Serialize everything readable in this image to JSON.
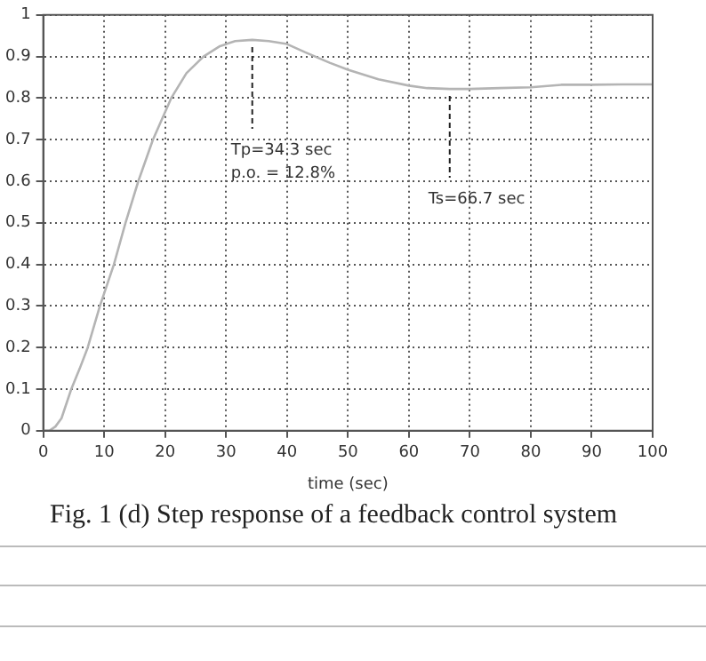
{
  "chart_data": {
    "type": "line",
    "xlabel": "time (sec)",
    "title": "Fig. 1 (d) Step response of a feedback control system",
    "series": [
      {
        "color": "#b4b4b4",
        "x": [
          0,
          1,
          2,
          3,
          4.6,
          6,
          7.3,
          9.3,
          11.6,
          13.5,
          15.6,
          18,
          21,
          23.5,
          26.3,
          29,
          31.5,
          34.3,
          37,
          40,
          43,
          47,
          50,
          55,
          60,
          63,
          66.7,
          70,
          75,
          80,
          85,
          90,
          95,
          100
        ],
        "values": [
          0,
          0,
          0.01,
          0.03,
          0.1,
          0.15,
          0.2,
          0.3,
          0.4,
          0.5,
          0.6,
          0.7,
          0.8,
          0.86,
          0.9,
          0.925,
          0.937,
          0.94,
          0.937,
          0.93,
          0.91,
          0.885,
          0.868,
          0.845,
          0.83,
          0.824,
          0.822,
          0.822,
          0.824,
          0.826,
          0.832,
          0.832,
          0.833,
          0.833
        ]
      }
    ],
    "annotations": [
      {
        "text": "Tp=34.3 sec",
        "x": 34.3,
        "y": 0.94
      },
      "p.o. = 12.8%",
      {
        "text": "Ts=66.7 sec",
        "x": 66.7,
        "y": 0.822
      }
    ],
    "xlim": [
      0,
      100
    ],
    "xticks": [
      0,
      10,
      20,
      30,
      40,
      50,
      60,
      70,
      80,
      90,
      100
    ],
    "ylim": [
      0,
      1
    ],
    "yticks": [
      0,
      0.1,
      0.2,
      0.3,
      0.4,
      0.5,
      0.6,
      0.7,
      0.8,
      0.9,
      1
    ],
    "grid": true,
    "legend": false,
    "marker": "none",
    "line_style": "solid"
  }
}
